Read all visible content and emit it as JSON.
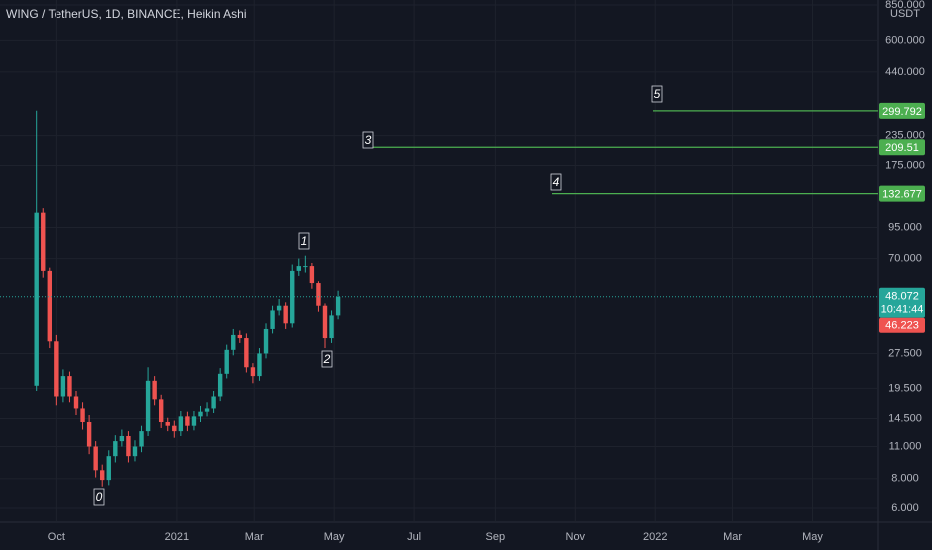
{
  "chart_data": {
    "type": "candlestick",
    "title": "WING / TetherUS, 1D, BINANCE, Heikin Ashi",
    "currency": "USDT",
    "log_scale": true,
    "grid": true,
    "x": [
      -15,
      -10,
      -5,
      0,
      5,
      10,
      15,
      20,
      25,
      30,
      35,
      40,
      45,
      50,
      55,
      60,
      65,
      70,
      75,
      80,
      85,
      90,
      95,
      100,
      105,
      110,
      115,
      120,
      125,
      130,
      135,
      140,
      145,
      150,
      155,
      160,
      165,
      170,
      175,
      180,
      185,
      190,
      195,
      200,
      205,
      210,
      215
    ],
    "open": [
      20,
      110,
      62,
      31,
      18,
      22,
      18,
      16,
      14,
      11,
      8.7,
      7.9,
      10,
      11.6,
      12.2,
      10,
      11,
      12.8,
      21,
      17.5,
      14,
      13.5,
      12.8,
      14.8,
      13.5,
      14.8,
      15.5,
      16,
      18,
      22.5,
      28.5,
      33,
      32,
      24,
      22,
      27.5,
      35,
      42,
      44,
      37,
      62,
      65,
      65,
      55,
      44,
      32,
      40
    ],
    "high": [
      300,
      115,
      64,
      33,
      23.5,
      23,
      19,
      17,
      15,
      11.6,
      9.2,
      10.6,
      12.3,
      13,
      12.8,
      11.7,
      13.5,
      24,
      22,
      18.3,
      14.6,
      14.2,
      15.6,
      15.5,
      15.6,
      16.4,
      17,
      19,
      23.8,
      30,
      35,
      34.5,
      33.5,
      25,
      29,
      37,
      44,
      47,
      45.5,
      66,
      70,
      72,
      67,
      56,
      45,
      42,
      51
    ],
    "low": [
      19,
      58,
      29,
      16.5,
      17,
      17,
      15,
      13,
      10.2,
      8.1,
      7.4,
      7.5,
      9.4,
      11,
      9.4,
      9.5,
      10.4,
      12.2,
      16.5,
      13.2,
      12.8,
      12,
      12.2,
      12.8,
      12.9,
      14,
      14.8,
      15.3,
      17.2,
      21.5,
      27,
      30.5,
      22.8,
      20.5,
      21,
      26.2,
      33.5,
      40,
      35,
      35.5,
      59,
      61,
      52,
      41.5,
      29,
      30.5,
      38.5
    ],
    "close": [
      110,
      62,
      31,
      18,
      22,
      18,
      16,
      14,
      11,
      8.7,
      7.9,
      10,
      11.6,
      12.2,
      10,
      11,
      12.8,
      21,
      17.5,
      14,
      13.5,
      12.8,
      14.8,
      13.5,
      14.8,
      15.5,
      16,
      18,
      22.5,
      28.5,
      33,
      32,
      24,
      22,
      27.5,
      35,
      42,
      44,
      37,
      62,
      65,
      65,
      55,
      44,
      32,
      40,
      48
    ],
    "up_color": "#26a69a",
    "down_color": "#ef5350",
    "xlim": [
      -43,
      627
    ],
    "xticks": [
      {
        "value": 0,
        "label": "Oct"
      },
      {
        "value": 92,
        "label": "2021"
      },
      {
        "value": 151,
        "label": "Mar"
      },
      {
        "value": 212,
        "label": "May"
      },
      {
        "value": 273,
        "label": "Jul"
      },
      {
        "value": 335,
        "label": "Sep"
      },
      {
        "value": 396,
        "label": "Nov"
      },
      {
        "value": 457,
        "label": "2022"
      },
      {
        "value": 516,
        "label": "Mar"
      },
      {
        "value": 577,
        "label": "May"
      }
    ],
    "ylim": [
      5.23,
      893
    ],
    "yticks": [
      {
        "value": 6,
        "label": "6.000"
      },
      {
        "value": 8,
        "label": "8.000"
      },
      {
        "value": 11,
        "label": "11.000"
      },
      {
        "value": 14.5,
        "label": "14.500"
      },
      {
        "value": 19.5,
        "label": "19.500"
      },
      {
        "value": 27.5,
        "label": "27.500"
      },
      {
        "value": 70,
        "label": "70.000"
      },
      {
        "value": 95,
        "label": "95.000"
      },
      {
        "value": 175,
        "label": "175.000"
      },
      {
        "value": 235,
        "label": "235.000"
      },
      {
        "value": 440,
        "label": "440.000"
      },
      {
        "value": 600,
        "label": "600.000"
      },
      {
        "value": 850,
        "label": "850.000"
      }
    ],
    "pivots": [
      "0",
      "1",
      "2"
    ],
    "levels": [
      {
        "wave": "3",
        "value": 209.51
      },
      {
        "wave": "4",
        "value": 132.677
      },
      {
        "wave": "5",
        "value": 299.792
      }
    ],
    "level_color": "#4caf50",
    "last_price": 48.072,
    "countdown": "10:41:44",
    "last_price_color": "#26a69a",
    "other_price": 46.223,
    "other_price_color": "#ef5350"
  }
}
